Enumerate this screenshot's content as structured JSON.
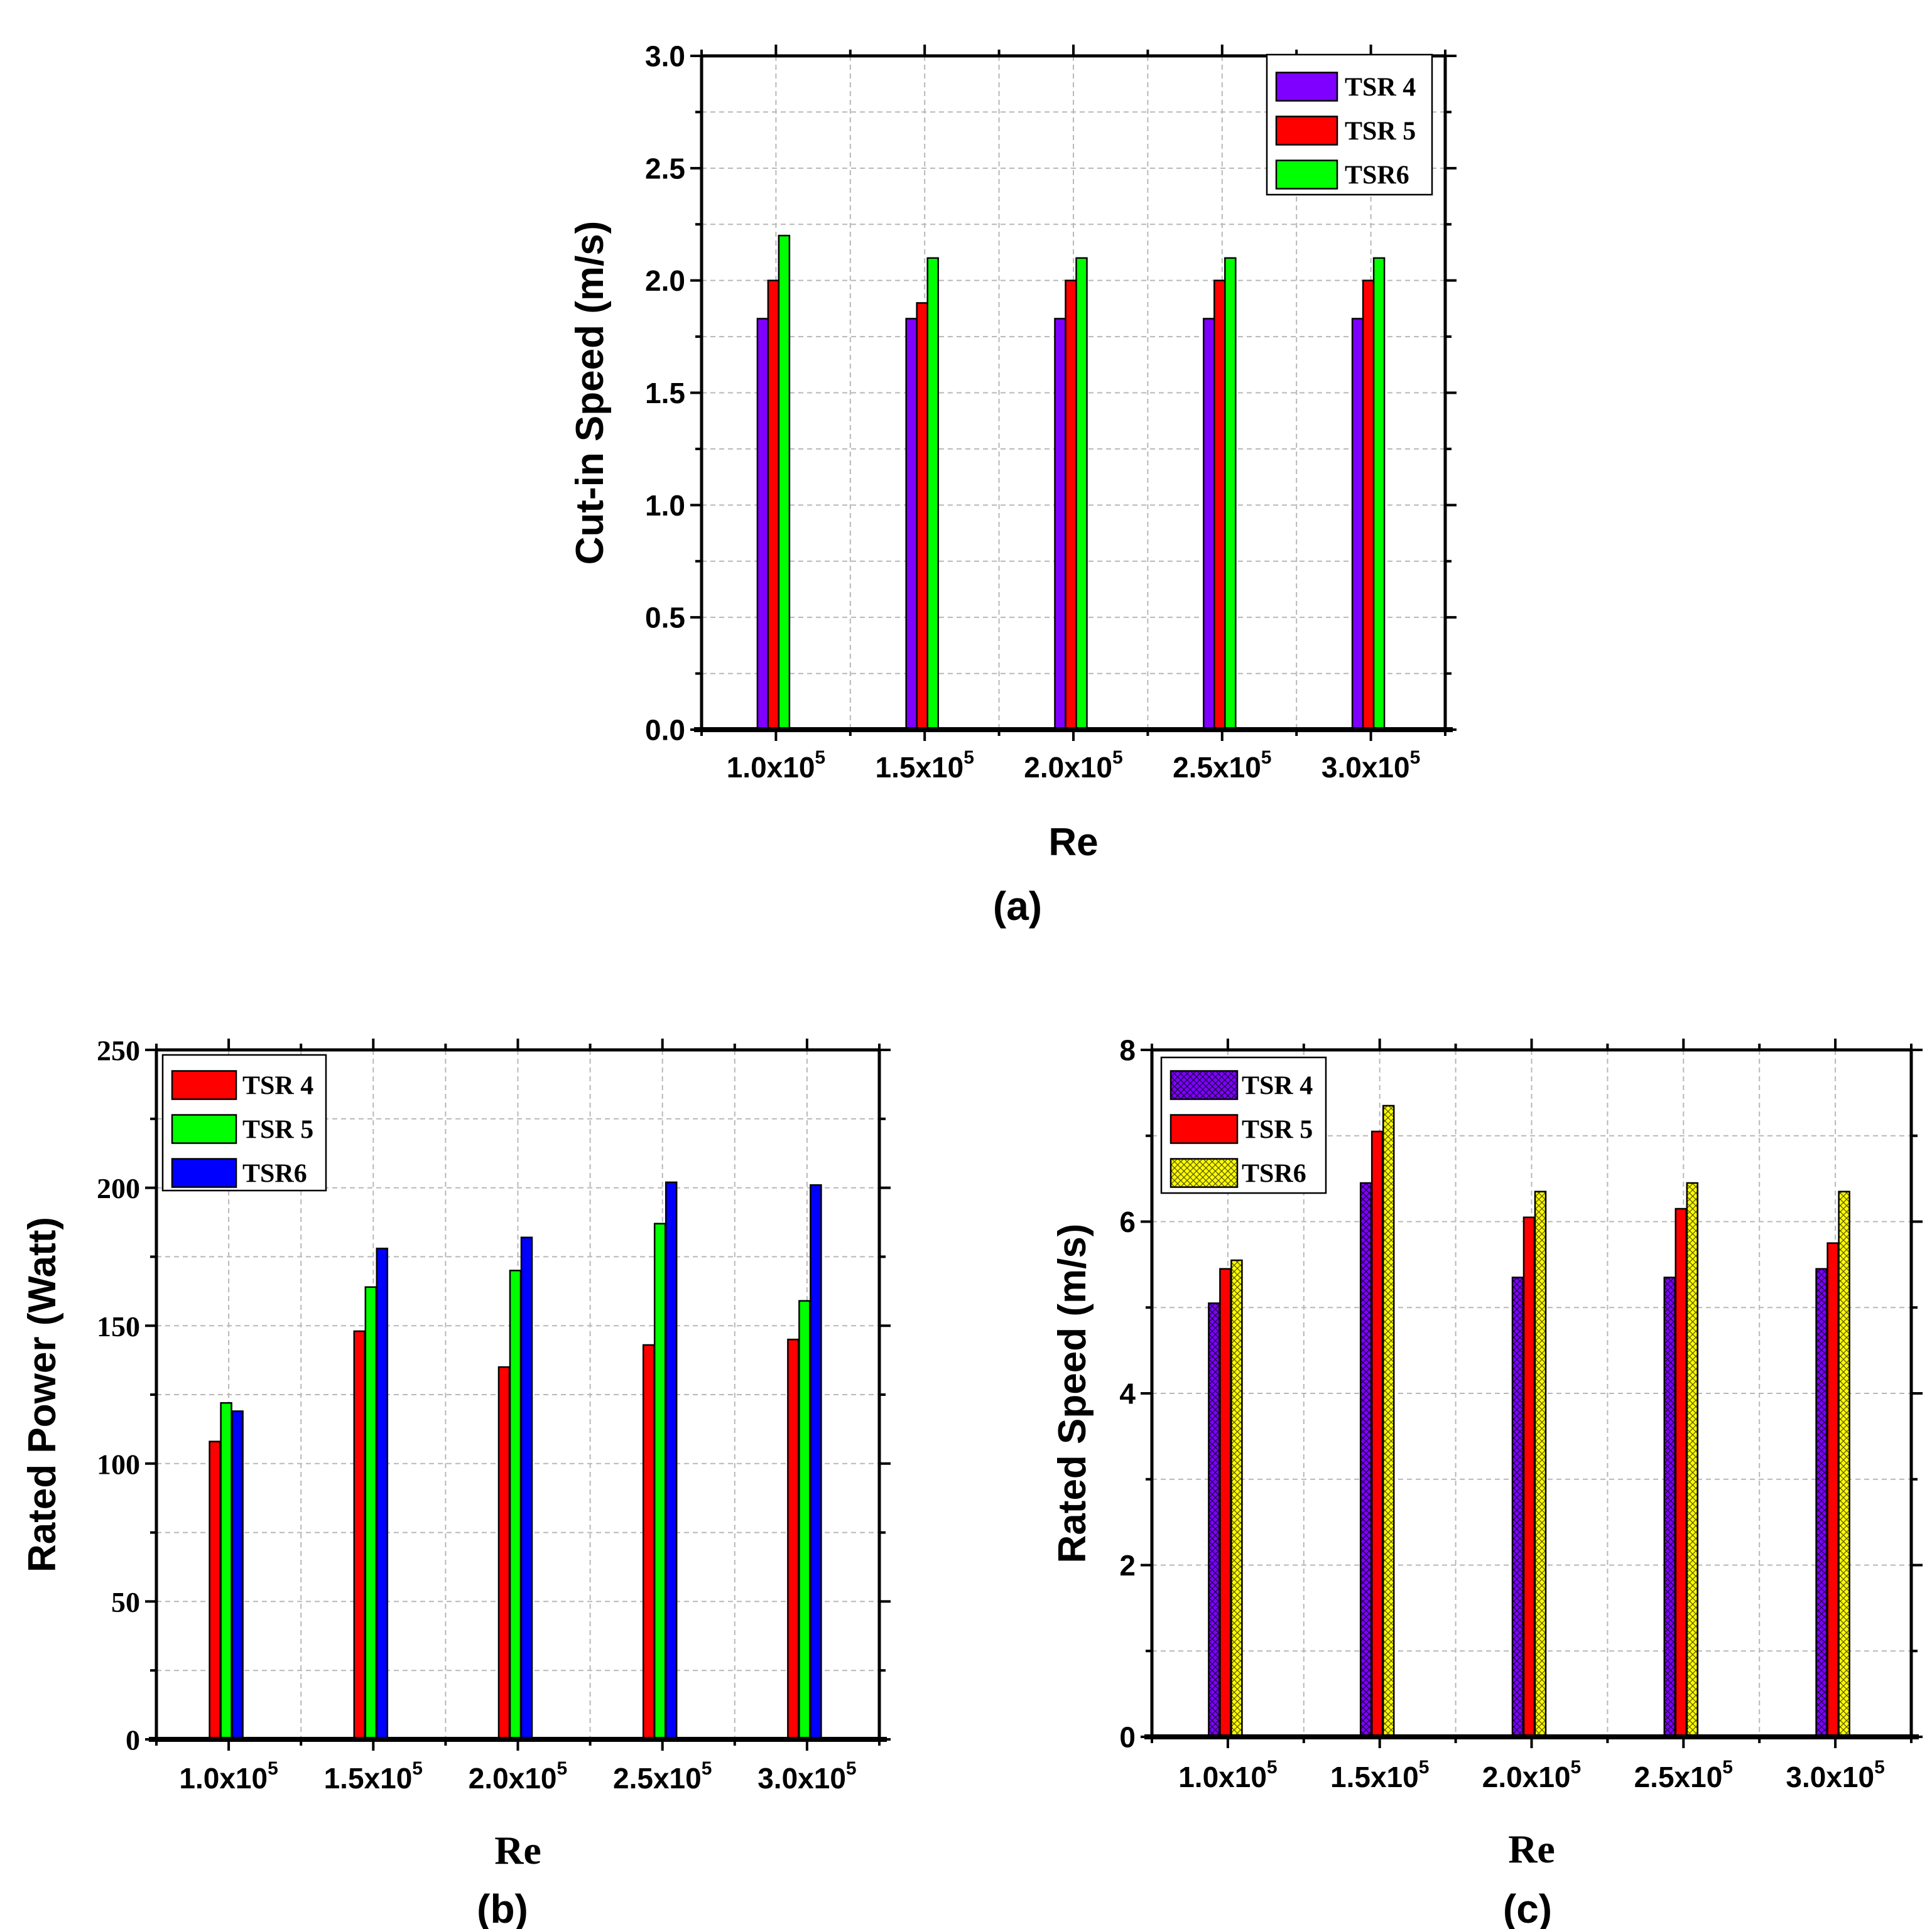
{
  "chart_data": [
    {
      "id": "a",
      "type": "bar",
      "panel_label": "(a)",
      "xlabel": "Re",
      "ylabel": "Cut-in Speed (m/s)",
      "ylim": [
        0,
        3.0
      ],
      "yticks": [
        "0.0",
        "0.5",
        "1.0",
        "1.5",
        "2.0",
        "2.5",
        "3.0"
      ],
      "categories": [
        {
          "base": "1.0x10",
          "exp": "5"
        },
        {
          "base": "1.5x10",
          "exp": "5"
        },
        {
          "base": "2.0x10",
          "exp": "5"
        },
        {
          "base": "2.5x10",
          "exp": "5"
        },
        {
          "base": "3.0x10",
          "exp": "5"
        }
      ],
      "series": [
        {
          "name": "TSR 4",
          "color": "#7f00ff",
          "pattern": "solid",
          "values": [
            1.83,
            1.83,
            1.83,
            1.83,
            1.83
          ]
        },
        {
          "name": "TSR 5",
          "color": "#ff0000",
          "pattern": "solid",
          "values": [
            2.0,
            1.9,
            2.0,
            2.0,
            2.0
          ]
        },
        {
          "name": "TSR6",
          "color": "#00ff00",
          "pattern": "solid",
          "values": [
            2.2,
            2.1,
            2.1,
            2.1,
            2.1
          ]
        }
      ],
      "legend": "top-right",
      "grid": true
    },
    {
      "id": "b",
      "type": "bar",
      "panel_label": "(b)",
      "xlabel": "Re",
      "ylabel": "Rated Power (Watt)",
      "ylim": [
        0,
        250
      ],
      "yticks": [
        "0",
        "50",
        "100",
        "150",
        "200",
        "250"
      ],
      "categories": [
        {
          "base": "1.0x10",
          "exp": "5"
        },
        {
          "base": "1.5x10",
          "exp": "5"
        },
        {
          "base": "2.0x10",
          "exp": "5"
        },
        {
          "base": "2.5x10",
          "exp": "5"
        },
        {
          "base": "3.0x10",
          "exp": "5"
        }
      ],
      "series": [
        {
          "name": "TSR 4",
          "color": "#ff0000",
          "pattern": "solid",
          "values": [
            108,
            148,
            135,
            143,
            145
          ]
        },
        {
          "name": "TSR 5",
          "color": "#00ff00",
          "pattern": "solid",
          "values": [
            122,
            164,
            170,
            187,
            159
          ]
        },
        {
          "name": "TSR6",
          "color": "#0000ff",
          "pattern": "solid",
          "values": [
            119,
            178,
            182,
            202,
            201
          ]
        }
      ],
      "legend": "top-left",
      "grid": true
    },
    {
      "id": "c",
      "type": "bar",
      "panel_label": "(c)",
      "xlabel": "Re",
      "ylabel": "Rated Speed (m/s)",
      "ylim": [
        0,
        8
      ],
      "yticks": [
        "0",
        "2",
        "4",
        "6",
        "8"
      ],
      "categories": [
        {
          "base": "1.0x10",
          "exp": "5"
        },
        {
          "base": "1.5x10",
          "exp": "5"
        },
        {
          "base": "2.0x10",
          "exp": "5"
        },
        {
          "base": "2.5x10",
          "exp": "5"
        },
        {
          "base": "3.0x10",
          "exp": "5"
        }
      ],
      "series": [
        {
          "name": "TSR 4",
          "color": "#7f00ff",
          "pattern": "crosshatch",
          "values": [
            5.05,
            6.45,
            5.35,
            5.35,
            5.45
          ]
        },
        {
          "name": "TSR 5",
          "color": "#ff0000",
          "pattern": "solid",
          "values": [
            5.45,
            7.05,
            6.05,
            6.15,
            5.75
          ]
        },
        {
          "name": "TSR6",
          "color": "#ffff00",
          "pattern": "crosshatch",
          "values": [
            5.55,
            7.35,
            6.35,
            6.45,
            6.35
          ]
        }
      ],
      "legend": "top-left",
      "grid": true
    }
  ]
}
